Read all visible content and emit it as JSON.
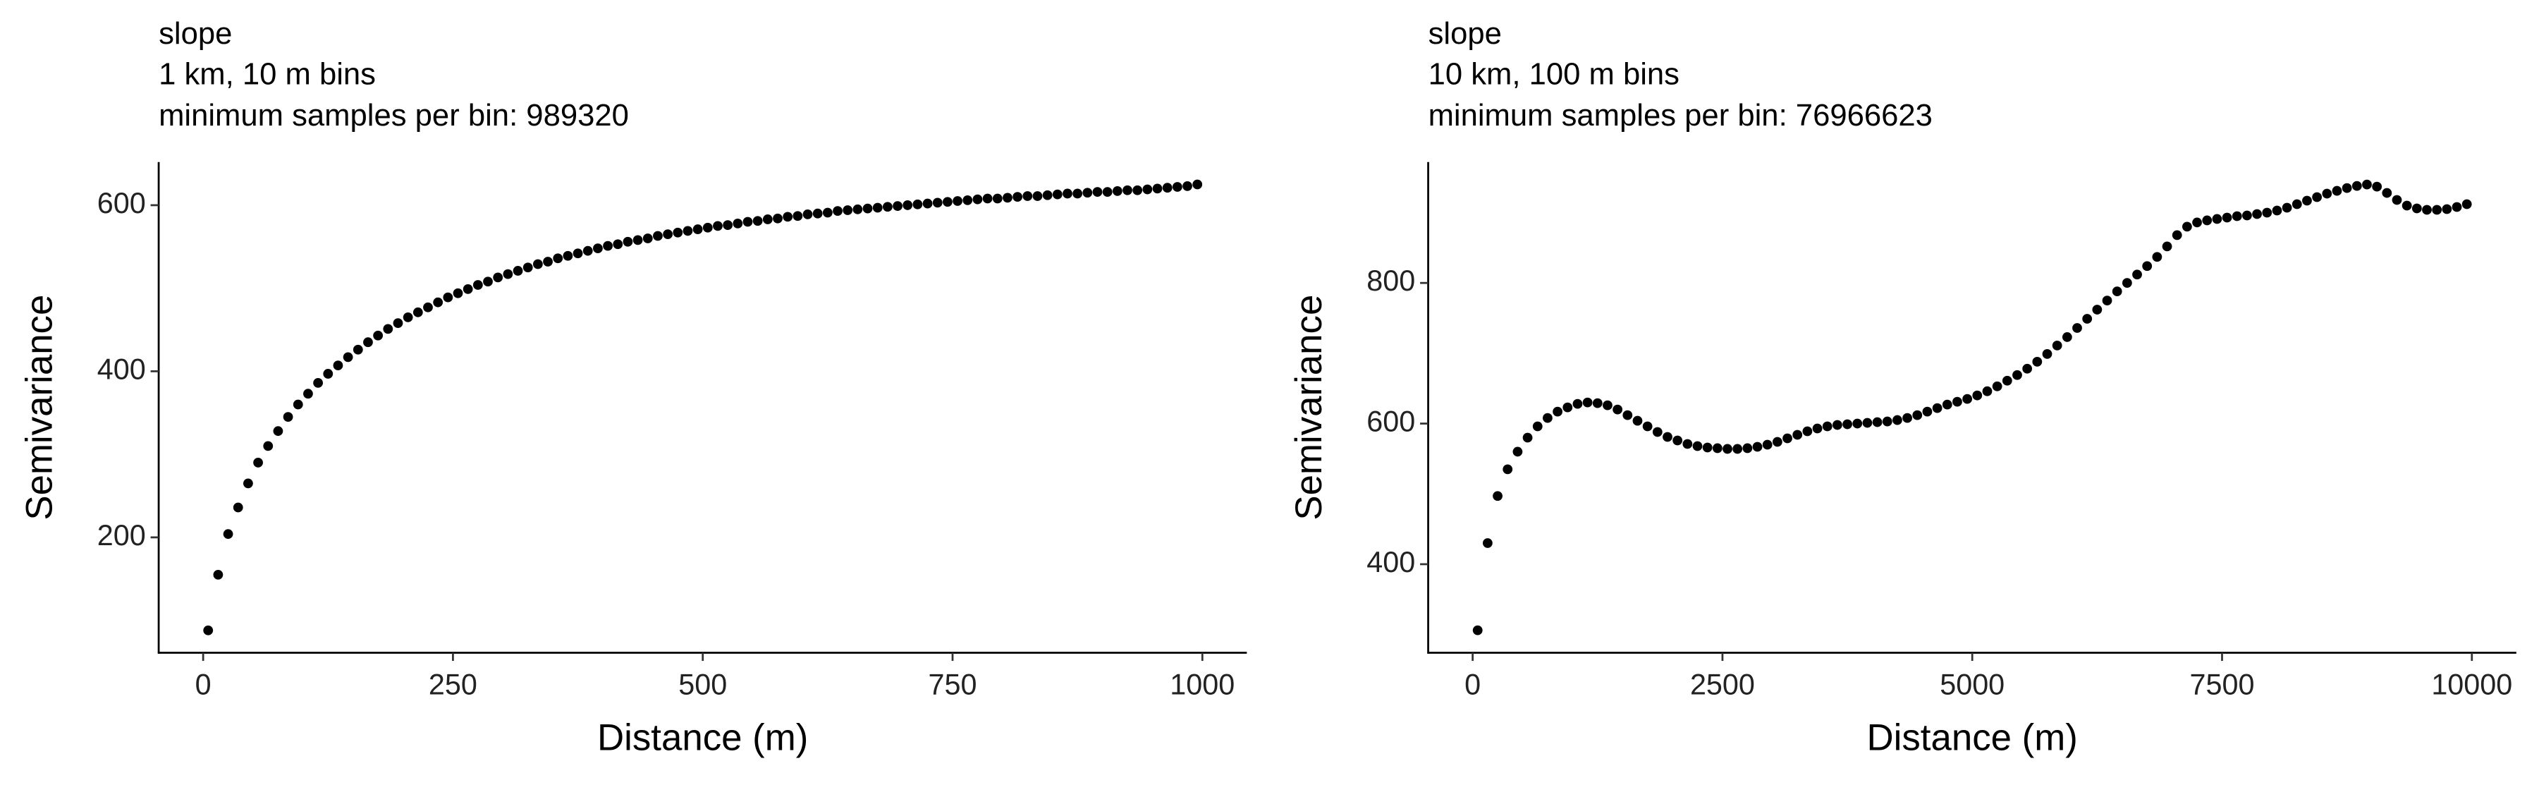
{
  "chart_data": [
    {
      "type": "scatter",
      "title": "slope",
      "subtitles": [
        "1 km, 10 m bins",
        "minimum samples per bin: 989320"
      ],
      "x_label": "Distance (m)",
      "y_label": "Semivariance",
      "color": "#000000",
      "xlim": [
        -44.5,
        1044.5
      ],
      "ylim": [
        61,
        652
      ],
      "xticks": [
        0,
        250,
        500,
        750,
        1000
      ],
      "yticks": [
        200,
        400,
        600
      ],
      "x": [
        5,
        15,
        25,
        35,
        45,
        55,
        65,
        75,
        85,
        95,
        105,
        115,
        125,
        135,
        145,
        155,
        165,
        175,
        185,
        195,
        205,
        215,
        225,
        235,
        245,
        255,
        265,
        275,
        285,
        295,
        305,
        315,
        325,
        335,
        345,
        355,
        365,
        375,
        385,
        395,
        405,
        415,
        425,
        435,
        445,
        455,
        465,
        475,
        485,
        495,
        505,
        515,
        525,
        535,
        545,
        555,
        565,
        575,
        585,
        595,
        605,
        615,
        625,
        635,
        645,
        655,
        665,
        675,
        685,
        695,
        705,
        715,
        725,
        735,
        745,
        755,
        765,
        775,
        785,
        795,
        805,
        815,
        825,
        835,
        845,
        855,
        865,
        875,
        885,
        895,
        905,
        915,
        925,
        935,
        945,
        955,
        965,
        975,
        985,
        995
      ],
      "values": [
        88,
        155,
        204,
        236,
        265,
        290,
        310,
        328,
        345,
        360,
        373,
        386,
        397,
        407,
        417,
        426,
        435,
        443,
        451,
        458,
        465,
        471,
        477,
        483,
        489,
        494,
        499,
        504,
        508,
        513,
        517,
        521,
        525,
        529,
        532,
        536,
        539,
        542,
        545,
        548,
        551,
        553,
        556,
        558,
        560,
        563,
        565,
        567,
        569,
        571,
        573,
        575,
        576,
        578,
        580,
        581,
        583,
        584,
        586,
        587,
        589,
        590,
        591,
        593,
        594,
        595,
        596,
        597,
        598,
        599,
        600,
        601,
        602,
        603,
        604,
        605,
        606,
        607,
        608,
        608,
        609,
        610,
        611,
        611,
        612,
        613,
        614,
        614,
        615,
        616,
        616,
        617,
        618,
        618,
        619,
        620,
        621,
        622,
        623,
        625
      ]
    },
    {
      "type": "scatter",
      "title": "slope",
      "subtitles": [
        "10 km, 100 m bins",
        "minimum samples per bin: 76966623"
      ],
      "x_label": "Distance (m)",
      "y_label": "Semivariance",
      "color": "#000000",
      "xlim": [
        -445,
        10445
      ],
      "ylim": [
        274,
        972
      ],
      "xticks": [
        0,
        2500,
        5000,
        7500,
        10000
      ],
      "yticks": [
        400,
        600,
        800
      ],
      "x": [
        50,
        150,
        250,
        350,
        450,
        550,
        650,
        750,
        850,
        950,
        1050,
        1150,
        1250,
        1350,
        1450,
        1550,
        1650,
        1750,
        1850,
        1950,
        2050,
        2150,
        2250,
        2350,
        2450,
        2550,
        2650,
        2750,
        2850,
        2950,
        3050,
        3150,
        3250,
        3350,
        3450,
        3550,
        3650,
        3750,
        3850,
        3950,
        4050,
        4150,
        4250,
        4350,
        4450,
        4550,
        4650,
        4750,
        4850,
        4950,
        5050,
        5150,
        5250,
        5350,
        5450,
        5550,
        5650,
        5750,
        5850,
        5950,
        6050,
        6150,
        6250,
        6350,
        6450,
        6550,
        6650,
        6750,
        6850,
        6950,
        7050,
        7150,
        7250,
        7350,
        7450,
        7550,
        7650,
        7750,
        7850,
        7950,
        8050,
        8150,
        8250,
        8350,
        8450,
        8550,
        8650,
        8750,
        8850,
        8950,
        9050,
        9150,
        9250,
        9350,
        9450,
        9550,
        9650,
        9750,
        9850,
        9950
      ],
      "values": [
        306,
        430,
        497,
        535,
        560,
        580,
        596,
        608,
        617,
        623,
        628,
        630,
        629,
        626,
        620,
        612,
        604,
        596,
        588,
        581,
        576,
        571,
        568,
        566,
        565,
        564,
        564,
        565,
        567,
        570,
        574,
        579,
        584,
        589,
        593,
        596,
        598,
        599,
        600,
        601,
        602,
        603,
        605,
        608,
        612,
        617,
        622,
        627,
        631,
        635,
        640,
        646,
        653,
        661,
        669,
        678,
        688,
        699,
        711,
        723,
        736,
        749,
        762,
        775,
        788,
        800,
        812,
        824,
        837,
        852,
        868,
        880,
        886,
        889,
        891,
        893,
        895,
        896,
        898,
        900,
        903,
        907,
        912,
        917,
        922,
        927,
        931,
        935,
        938,
        940,
        937,
        928,
        918,
        910,
        906,
        904,
        904,
        905,
        908,
        912
      ]
    }
  ]
}
